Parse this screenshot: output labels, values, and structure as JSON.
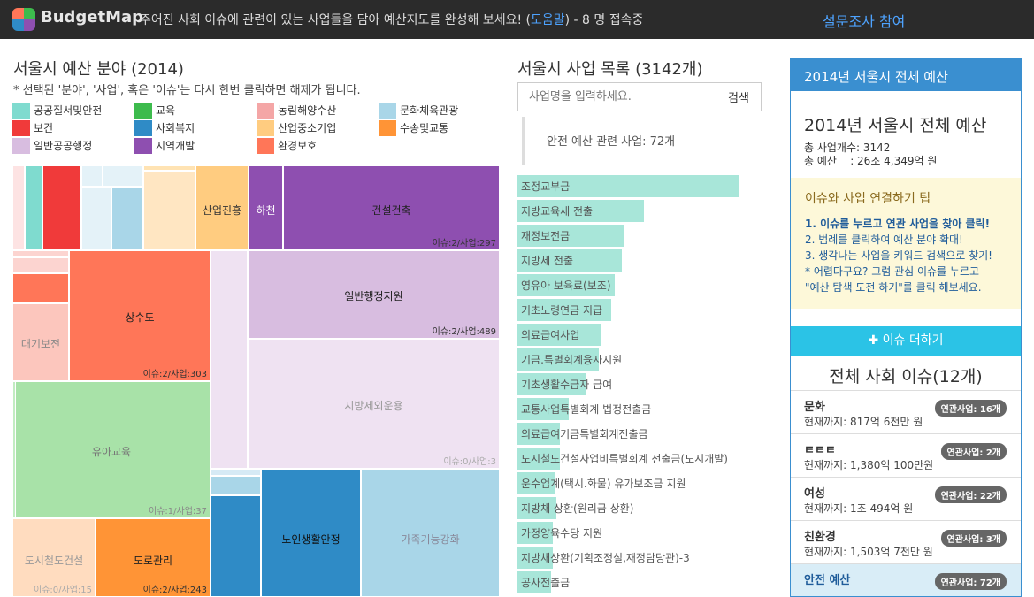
{
  "header": {
    "app_name": "BudgetMap",
    "message_prefix": "주어진 사회 이슈에 관련이 있는 사업들을 담아 예산지도를 완성해 보세요! (",
    "help_link": "도움말",
    "message_suffix": ") - 8 명 접속중",
    "survey_link": "설문조사 참여"
  },
  "left": {
    "title": "서울시 예산 분야 (2014)",
    "hint": "* 선택된 '분야', '사업', 혹은 '이슈'는 다시 한번 클릭하면 해제가 됩니다.",
    "legend": [
      {
        "label": "공공질서및안전",
        "color": "#7fdbcf"
      },
      {
        "label": "교육",
        "color": "#3dbb4d"
      },
      {
        "label": "농림해양수산",
        "color": "#f4a6a6"
      },
      {
        "label": "문화체육관광",
        "color": "#a9d6e8"
      },
      {
        "label": "보건",
        "color": "#f03a3a"
      },
      {
        "label": "사회복지",
        "color": "#2f8bc6"
      },
      {
        "label": "산업중소기업",
        "color": "#ffcc80"
      },
      {
        "label": "수송및교통",
        "color": "#ff9436"
      },
      {
        "label": "일반공공행정",
        "color": "#d8bde0"
      },
      {
        "label": "지역개발",
        "color": "#8e4fb0"
      },
      {
        "label": "환경보호",
        "color": "#ff7658"
      }
    ],
    "treemap": {
      "sanup": {
        "name": "산업진흥"
      },
      "hacheon": {
        "name": "하천"
      },
      "geonseol": {
        "name": "건설건축",
        "meta": "이슈:2/사업:297"
      },
      "sangsudo": {
        "name": "상수도",
        "meta": "이슈:2/사업:303"
      },
      "ilban": {
        "name": "일반행정지원",
        "meta": "이슈:2/사업:489"
      },
      "daegi": {
        "name": "대기보전"
      },
      "jibangse": {
        "name": "지방세외운용",
        "meta": "이슈:0/사업:3"
      },
      "yua": {
        "name": "유아교육",
        "meta": "이슈:1/사업:37"
      },
      "dosi": {
        "name": "도시철도건설",
        "meta": "이슈:0/사업:15"
      },
      "doro": {
        "name": "도로관리",
        "meta": "이슈:2/사업:243"
      },
      "noin": {
        "name": "노인생활안정"
      },
      "gajok": {
        "name": "가족기능강화"
      }
    }
  },
  "middle": {
    "title": "서울시 사업 목록 (3142개)",
    "search_placeholder": "사업명을 입력하세요.",
    "search_button": "검색",
    "filter_text": "안전 예산 관련 사업: 72개",
    "projects": [
      {
        "label": "조정교부금",
        "value": 250
      },
      {
        "label": "지방교육세 전출",
        "value": 143
      },
      {
        "label": "재정보전금",
        "value": 121
      },
      {
        "label": "지방세 전출",
        "value": 118
      },
      {
        "label": "영유아 보육료(보조)",
        "value": 110
      },
      {
        "label": "기초노령연금 지급",
        "value": 106
      },
      {
        "label": "의료급여사업",
        "value": 94
      },
      {
        "label": "기금.특별회계융자지원",
        "value": 92
      },
      {
        "label": "기초생활수급자 급여",
        "value": 78
      },
      {
        "label": "교통사업특별회계 법정전출금",
        "value": 58
      },
      {
        "label": "의료급여기금특별회계전출금",
        "value": 48
      },
      {
        "label": "도시철도건설사업비특별회계 전출금(도시개발)",
        "value": 48
      },
      {
        "label": "운수업계(택시.화물) 유가보조금 지원",
        "value": 43
      },
      {
        "label": "지방채 상환(원리금 상환)",
        "value": 44
      },
      {
        "label": "가정양육수당 지원",
        "value": 40
      },
      {
        "label": "지방채상환(기획조정실,재정담당관)-3",
        "value": 40
      },
      {
        "label": "공사전출금",
        "value": 38
      }
    ]
  },
  "right": {
    "panel_title": "2014년 서울시 전체 예산",
    "subtitle": "2014년 서울시 전체 예산",
    "count_line": "총 사업개수: 3142",
    "budget_line": "총 예산    : 26조 4,349억 원",
    "tip_title": "이슈와 사업 연결하기 팁",
    "tips": [
      "1. 이슈를 누르고 연관 사업을 찾아 클릭!",
      "2. 범례를 클릭하여 예산 분야 확대!",
      "3. 생각나는 사업을 키워드 검색으로 찾기!",
      "* 어렵다구요? 그럼 관심 이슈를 누르고",
      "\"예산 탐색 도전 하기\"를 클릭 해보세요."
    ],
    "add_issue": "이슈 더하기",
    "issues_title": "전체 사회 이슈(12개)",
    "issues": [
      {
        "name": "문화",
        "amount": "현재까지: 817억 6천만 원",
        "badge": "연관사업: 16개"
      },
      {
        "name": "ㅌㅌㅌ",
        "amount": "현재까지: 1,380억 100만원",
        "badge": "연관사업: 2개"
      },
      {
        "name": "여성",
        "amount": "현재까지: 1조 494억 원",
        "badge": "연관사업: 22개"
      },
      {
        "name": "친환경",
        "amount": "현재까지: 1,503억 7천만 원",
        "badge": "연관사업: 3개"
      },
      {
        "name": "안전 예산",
        "amount": "",
        "badge": "연관사업: 72개"
      }
    ]
  }
}
